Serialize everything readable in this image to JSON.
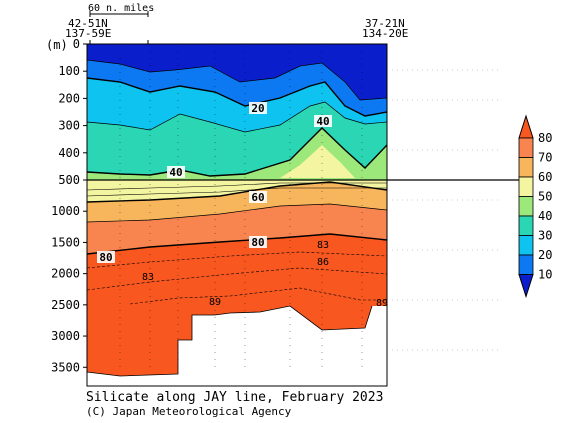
{
  "chart_data": {
    "type": "heatmap",
    "title": "Silicate along JAY line, February 2023",
    "credit": "(C) Japan Meteorological Agency",
    "ylabel": "(m)",
    "scale_bar_label": "60 n. miles",
    "left_station": {
      "lat": "42-51N",
      "lon": "137-59E"
    },
    "right_station": {
      "lat": "37-21N",
      "lon": "134-20E"
    },
    "upper_axis": {
      "range": [
        0,
        500
      ],
      "ticks": [
        "0",
        "100",
        "200",
        "300",
        "400",
        "500"
      ]
    },
    "lower_axis": {
      "range": [
        500,
        3800
      ],
      "ticks": [
        "1000",
        "1500",
        "2000",
        "2500",
        "3000",
        "3500"
      ]
    },
    "colorbar": {
      "ticks": [
        "10",
        "20",
        "30",
        "40",
        "50",
        "60",
        "70",
        "80"
      ],
      "bins": [
        {
          "max": 10,
          "color": "#0a1ecc"
        },
        {
          "max": 20,
          "color": "#0c79f2"
        },
        {
          "max": 30,
          "color": "#0ec3f0"
        },
        {
          "max": 40,
          "color": "#2ad6b4"
        },
        {
          "max": 50,
          "color": "#9ce87a"
        },
        {
          "max": 60,
          "color": "#f4f5a0"
        },
        {
          "max": 70,
          "color": "#f7b65c"
        },
        {
          "max": 80,
          "color": "#f88450"
        },
        {
          "max": 90,
          "color": "#f8571f"
        }
      ]
    },
    "contour_labels": [
      "20",
      "40",
      "40",
      "60",
      "80",
      "80",
      "83",
      "83",
      "86",
      "89",
      "89"
    ]
  }
}
